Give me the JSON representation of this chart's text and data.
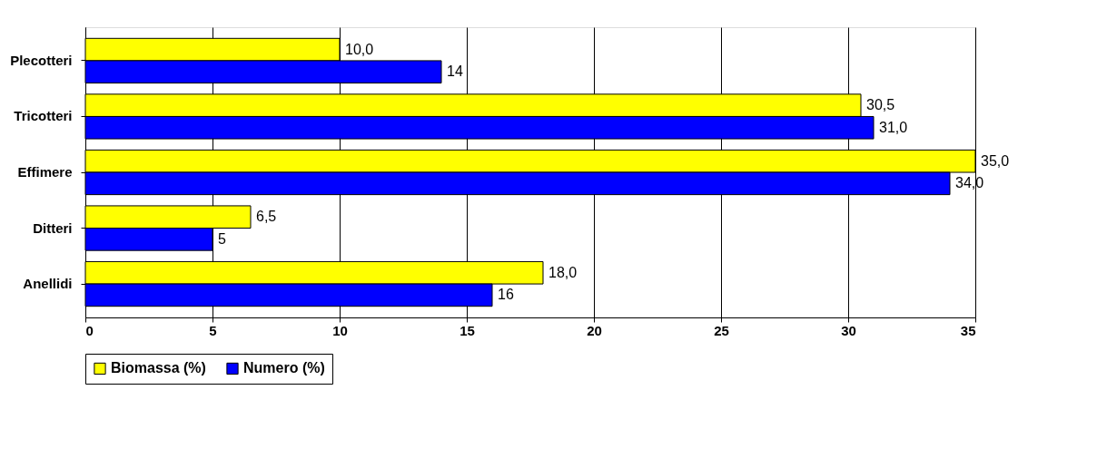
{
  "chart_data": {
    "type": "bar",
    "orientation": "horizontal",
    "categories": [
      "Plecotteri",
      "Tricotteri",
      "Effimere",
      "Ditteri",
      "Anellidi"
    ],
    "series": [
      {
        "name": "Biomassa (%)",
        "color": "#ffff00",
        "values": [
          10.0,
          30.5,
          35.0,
          6.5,
          18.0
        ],
        "value_labels": [
          "10,0",
          "30,5",
          "35,0",
          "6,5",
          "18,0"
        ]
      },
      {
        "name": "Numero (%)",
        "color": "#0000ff",
        "values": [
          14,
          31.0,
          34.0,
          5,
          16
        ],
        "value_labels": [
          "14",
          "31,0",
          "34,0",
          "5",
          "16"
        ]
      }
    ],
    "xlim": [
      0,
      35
    ],
    "xticks": [
      0,
      5,
      10,
      15,
      20,
      25,
      30,
      35
    ],
    "grid": "x",
    "legend": "bottom"
  }
}
